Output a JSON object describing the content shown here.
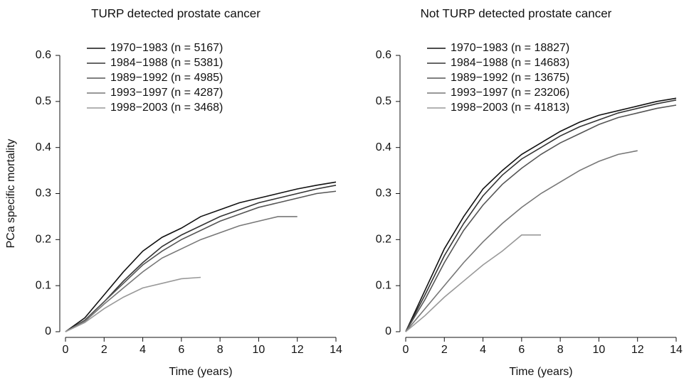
{
  "chart_data": [
    {
      "type": "line",
      "title": "TURP detected prostate cancer",
      "xlabel": "Time (years)",
      "ylabel": "PCa specific mortality",
      "x": [
        0,
        1,
        2,
        3,
        4,
        5,
        6,
        7,
        8,
        9,
        10,
        11,
        12,
        13,
        14
      ],
      "xlim": [
        0,
        14
      ],
      "xticks": [
        0,
        2,
        4,
        6,
        8,
        10,
        12,
        14
      ],
      "ylim": [
        0,
        0.6
      ],
      "yticks": [
        0,
        0.1,
        0.2,
        0.3,
        0.4,
        0.5,
        0.6
      ],
      "legend": "upper left",
      "series": [
        {
          "name": "1970−1983 (n = 5167)",
          "color": "#111111",
          "values": [
            0,
            0.03,
            0.08,
            0.13,
            0.175,
            0.205,
            0.225,
            0.25,
            0.265,
            0.28,
            0.29,
            0.3,
            0.31,
            0.318,
            0.325
          ]
        },
        {
          "name": "1984−1988 (n = 5381)",
          "color": "#333333",
          "values": [
            0,
            0.025,
            0.065,
            0.11,
            0.15,
            0.185,
            0.21,
            0.23,
            0.25,
            0.265,
            0.28,
            0.29,
            0.3,
            0.31,
            0.318
          ]
        },
        {
          "name": "1989−1992 (n = 4985)",
          "color": "#555555",
          "values": [
            0,
            0.025,
            0.065,
            0.105,
            0.145,
            0.175,
            0.2,
            0.22,
            0.24,
            0.255,
            0.27,
            0.28,
            0.29,
            0.3,
            0.305
          ]
        },
        {
          "name": "1993−1997 (n = 4287)",
          "color": "#777777",
          "values": [
            0,
            0.022,
            0.06,
            0.095,
            0.13,
            0.16,
            0.18,
            0.2,
            0.215,
            0.23,
            0.24,
            0.25,
            0.25,
            null,
            null
          ]
        },
        {
          "name": "1998−2003 (n = 3468)",
          "color": "#999999",
          "values": [
            0,
            0.02,
            0.05,
            0.075,
            0.095,
            0.105,
            0.115,
            0.118,
            null,
            null,
            null,
            null,
            null,
            null,
            null
          ]
        }
      ]
    },
    {
      "type": "line",
      "title": "Not TURP detected prostate cancer",
      "xlabel": "Time (years)",
      "x": [
        0,
        1,
        2,
        3,
        4,
        5,
        6,
        7,
        8,
        9,
        10,
        11,
        12,
        13,
        14
      ],
      "xlim": [
        0,
        14
      ],
      "xticks": [
        0,
        2,
        4,
        6,
        8,
        10,
        12,
        14
      ],
      "ylim": [
        0,
        0.6
      ],
      "yticks": [
        0,
        0.1,
        0.2,
        0.3,
        0.4,
        0.5,
        0.6
      ],
      "legend": "upper left",
      "series": [
        {
          "name": "1970−1983 (n = 18827)",
          "color": "#111111",
          "values": [
            0,
            0.09,
            0.18,
            0.25,
            0.31,
            0.35,
            0.385,
            0.41,
            0.435,
            0.455,
            0.47,
            0.48,
            0.49,
            0.5,
            0.507
          ]
        },
        {
          "name": "1984−1988 (n = 14683)",
          "color": "#333333",
          "values": [
            0,
            0.08,
            0.165,
            0.235,
            0.295,
            0.34,
            0.375,
            0.4,
            0.425,
            0.445,
            0.46,
            0.475,
            0.485,
            0.495,
            0.503
          ]
        },
        {
          "name": "1989−1992 (n = 13675)",
          "color": "#555555",
          "values": [
            0,
            0.07,
            0.15,
            0.22,
            0.275,
            0.32,
            0.355,
            0.385,
            0.41,
            0.43,
            0.45,
            0.465,
            0.475,
            0.485,
            0.492
          ]
        },
        {
          "name": "1993−1997 (n = 23206)",
          "color": "#777777",
          "values": [
            0,
            0.05,
            0.1,
            0.15,
            0.195,
            0.235,
            0.27,
            0.3,
            0.325,
            0.35,
            0.37,
            0.385,
            0.393,
            null,
            null
          ]
        },
        {
          "name": "1998−2003 (n = 41813)",
          "color": "#999999",
          "values": [
            0,
            0.035,
            0.075,
            0.11,
            0.145,
            0.175,
            0.21,
            0.21,
            null,
            null,
            null,
            null,
            null,
            null,
            null
          ]
        }
      ]
    }
  ]
}
